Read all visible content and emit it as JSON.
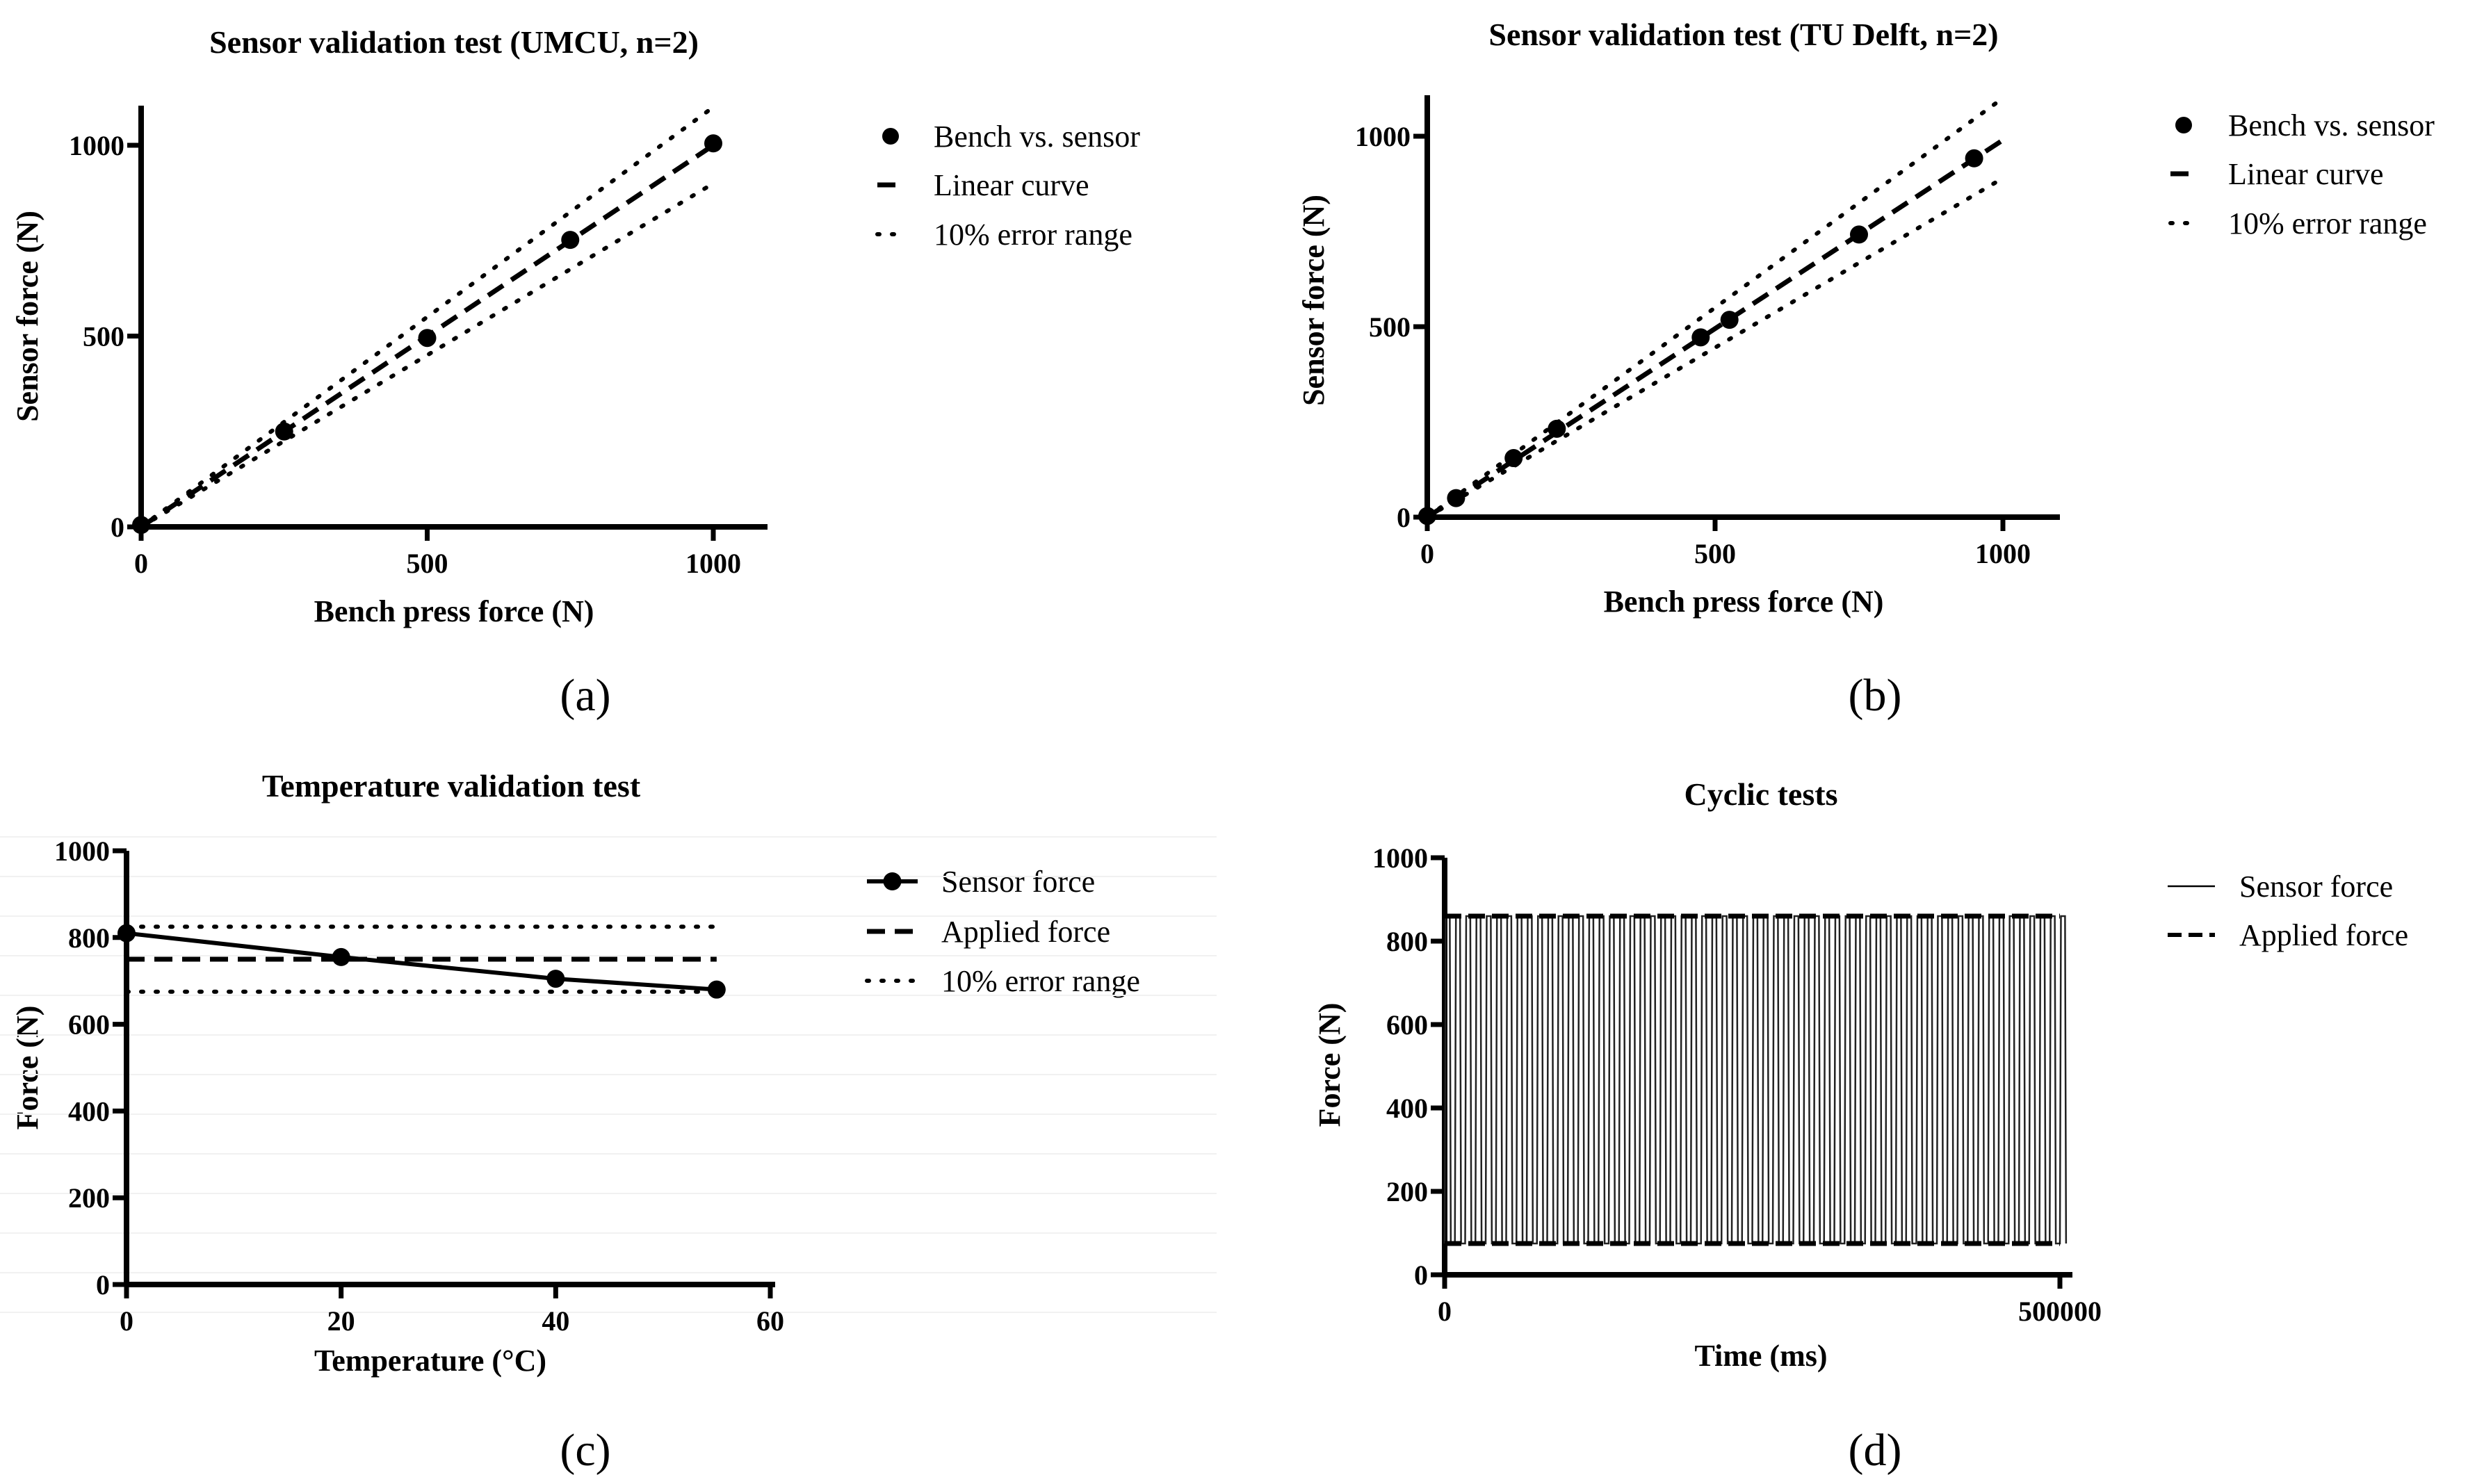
{
  "chart_data": [
    {
      "id": "a",
      "type": "scatter",
      "panel_label": "(a)",
      "title": "Sensor validation test (UMCU, n=2)",
      "xlabel": "Bench press force (N)",
      "ylabel": "Sensor force (N)",
      "xlim": [
        0,
        1100
      ],
      "ylim": [
        0,
        1100
      ],
      "xticks": [
        0,
        500,
        1000
      ],
      "yticks": [
        0,
        500,
        1000
      ],
      "legend_position": "right",
      "series": [
        {
          "name": "Bench vs. sensor",
          "style": "markers",
          "x": [
            0,
            250,
            500,
            750,
            1000
          ],
          "y": [
            5,
            250,
            495,
            752,
            1005
          ]
        },
        {
          "name": "Linear curve",
          "style": "dashed",
          "x": [
            0,
            1000
          ],
          "y": [
            0,
            1000
          ]
        },
        {
          "name": "10% error range",
          "style": "dotted",
          "x": [
            0,
            1000
          ],
          "y": [
            0,
            1100
          ],
          "y2": [
            0,
            900
          ]
        }
      ]
    },
    {
      "id": "b",
      "type": "scatter",
      "panel_label": "(b)",
      "title": "Sensor validation test (TU Delft, n=2)",
      "xlabel": "Bench press force (N)",
      "ylabel": "Sensor force (N)",
      "xlim": [
        0,
        1100
      ],
      "ylim": [
        0,
        1100
      ],
      "xticks": [
        0,
        500,
        1000
      ],
      "yticks": [
        0,
        500,
        1000
      ],
      "legend_position": "right",
      "series": [
        {
          "name": "Bench vs. sensor",
          "style": "markers",
          "x": [
            0,
            50,
            150,
            225,
            475,
            525,
            750,
            950
          ],
          "y": [
            3,
            50,
            155,
            232,
            472,
            518,
            742,
            942
          ]
        },
        {
          "name": "Linear curve",
          "style": "dashed",
          "x": [
            0,
            1000
          ],
          "y": [
            0,
            990
          ]
        },
        {
          "name": "10% error range",
          "style": "dotted",
          "x": [
            0,
            1000
          ],
          "y": [
            0,
            1100
          ],
          "y2": [
            0,
            890
          ]
        }
      ]
    },
    {
      "id": "c",
      "type": "line",
      "panel_label": "(c)",
      "title": "Temperature validation test",
      "xlabel": "Temperature (°C)",
      "ylabel": "Force (N)",
      "xlim": [
        0,
        60
      ],
      "ylim": [
        0,
        1000
      ],
      "xticks": [
        0,
        20,
        40,
        60
      ],
      "yticks": [
        0,
        200,
        400,
        600,
        800,
        1000
      ],
      "legend_position": "right",
      "series": [
        {
          "name": "Sensor force",
          "style": "line-markers",
          "x": [
            0,
            20,
            40,
            55
          ],
          "y": [
            810,
            755,
            705,
            680
          ]
        },
        {
          "name": "Applied force",
          "style": "dashed",
          "x": [
            0,
            55
          ],
          "y": [
            750,
            750
          ]
        },
        {
          "name": "10% error range",
          "style": "dotted",
          "x": [
            0,
            55
          ],
          "y": [
            825,
            825
          ],
          "y2": [
            675,
            675
          ]
        }
      ]
    },
    {
      "id": "d",
      "type": "line",
      "panel_label": "(d)",
      "title": "Cyclic tests",
      "xlabel": "Time (ms)",
      "ylabel": "Force (N)",
      "xlim": [
        0,
        500000
      ],
      "ylim": [
        0,
        1000
      ],
      "xticks": [
        0,
        500000
      ],
      "yticks": [
        0,
        200,
        400,
        600,
        800,
        1000
      ],
      "legend_position": "right",
      "cycles": 60,
      "series": [
        {
          "name": "Sensor force",
          "style": "thin",
          "min": 75,
          "max": 860
        },
        {
          "name": "Applied force",
          "style": "dashed",
          "min": 75,
          "max": 860
        }
      ]
    }
  ]
}
